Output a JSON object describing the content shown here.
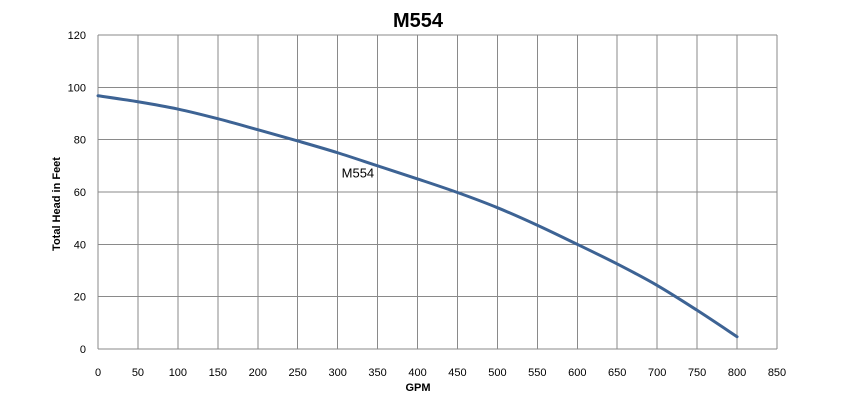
{
  "chart_data": {
    "type": "line",
    "title": "M554",
    "xlabel": "GPM",
    "ylabel": "Total Head in Feet",
    "xlim": [
      0,
      850
    ],
    "ylim": [
      0,
      120
    ],
    "x_ticks": [
      0,
      50,
      100,
      150,
      200,
      250,
      300,
      350,
      400,
      450,
      500,
      550,
      600,
      650,
      700,
      750,
      800,
      850
    ],
    "y_ticks": [
      0,
      20,
      40,
      60,
      80,
      100,
      120
    ],
    "grid": true,
    "legend": "none",
    "series": [
      {
        "name": "M554",
        "color": "#3d6394",
        "x": [
          0,
          50,
          100,
          150,
          200,
          250,
          300,
          350,
          400,
          450,
          500,
          550,
          600,
          650,
          700,
          750,
          800
        ],
        "y": [
          96.8,
          94.5,
          91.7,
          88.0,
          83.8,
          79.5,
          75.0,
          70.0,
          65.0,
          59.8,
          54.0,
          47.3,
          40.0,
          32.5,
          24.3,
          14.8,
          4.7
        ]
      }
    ],
    "annotations": [
      {
        "text": "M554",
        "x": 305,
        "y": 65.5
      }
    ]
  }
}
